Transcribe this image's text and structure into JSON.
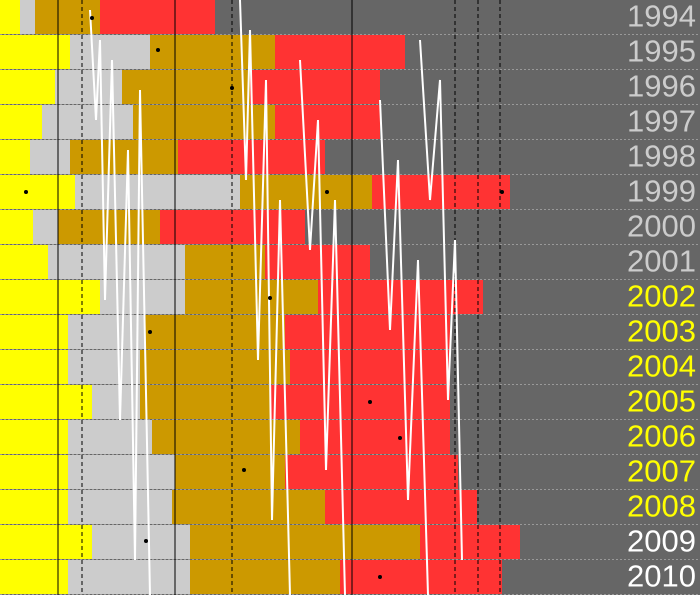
{
  "chart_data": {
    "type": "bar",
    "stacked": true,
    "orientation": "horizontal",
    "categories": [
      "1994",
      "1995",
      "1996",
      "1997",
      "1998",
      "1999",
      "2000",
      "2001",
      "2002",
      "2003",
      "2004",
      "2005",
      "2006",
      "2007",
      "2008",
      "2009",
      "2010"
    ],
    "label_colors": [
      "#cccccc",
      "#cccccc",
      "#cccccc",
      "#cccccc",
      "#cccccc",
      "#cccccc",
      "#cccccc",
      "#cccccc",
      "#ffff00",
      "#ffff00",
      "#ffff00",
      "#ffff00",
      "#ffff00",
      "#ffff00",
      "#ffff00",
      "#ffffff",
      "#ffffff"
    ],
    "xlim": [
      0,
      700
    ],
    "background": "#666666",
    "series": [
      {
        "color": "#ffff00",
        "values": [
          20,
          70,
          55,
          42,
          30,
          75,
          33,
          48,
          100,
          68,
          68,
          92,
          68,
          68,
          68,
          92,
          68
        ]
      },
      {
        "color": "#cccccc",
        "values": [
          15,
          80,
          67,
          91,
          40,
          165,
          25,
          137,
          85,
          77,
          72,
          48,
          84,
          107,
          104,
          98,
          122
        ]
      },
      {
        "color": "#cc9900",
        "values": [
          65,
          125,
          128,
          142,
          108,
          132,
          102,
          80,
          133,
          140,
          150,
          130,
          148,
          110,
          153,
          230,
          150
        ]
      },
      {
        "color": "#ff3333",
        "values": [
          115,
          130,
          130,
          105,
          147,
          138,
          145,
          105,
          165,
          165,
          160,
          180,
          150,
          173,
          152,
          100,
          162
        ]
      }
    ]
  }
}
